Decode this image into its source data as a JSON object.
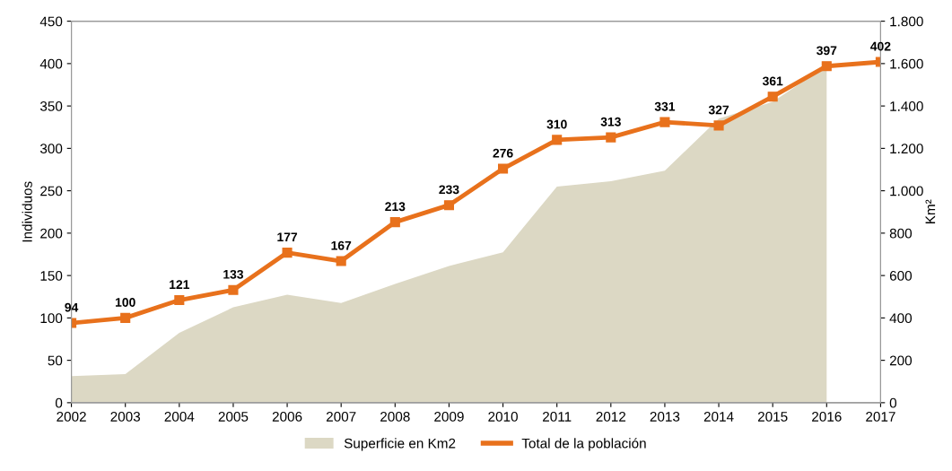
{
  "chart_data": {
    "type": "line",
    "ylabel": "Individuos",
    "y2label": "Km²",
    "x": [
      2002,
      2003,
      2004,
      2005,
      2006,
      2007,
      2008,
      2009,
      2010,
      2011,
      2012,
      2013,
      2014,
      2015,
      2016,
      2017
    ],
    "series": [
      {
        "name": "Superficie en Km2",
        "type": "area",
        "axis": "y2",
        "color": "#dcd8c4",
        "values": [
          125,
          135,
          330,
          450,
          510,
          470,
          560,
          645,
          710,
          1020,
          1045,
          1095,
          1340,
          1420,
          1590,
          null
        ]
      },
      {
        "name": "Total de la población",
        "color": "#e8711c",
        "marker": "square",
        "values": [
          94,
          100,
          121,
          133,
          177,
          167,
          213,
          233,
          276,
          310,
          313,
          331,
          327,
          361,
          397,
          402
        ],
        "value_labels": [
          "94",
          "100",
          "121",
          "133",
          "177",
          "167",
          "213",
          "233",
          "276",
          "310",
          "313",
          "331",
          "327",
          "361",
          "397",
          "402"
        ]
      }
    ],
    "xlim": [
      2002,
      2017
    ],
    "xticks": [
      2002,
      2003,
      2004,
      2005,
      2006,
      2007,
      2008,
      2009,
      2010,
      2011,
      2012,
      2013,
      2014,
      2015,
      2016,
      2017
    ],
    "ylim": [
      0,
      450
    ],
    "yticks": [
      0,
      50,
      100,
      150,
      200,
      250,
      300,
      350,
      400,
      450
    ],
    "y2lim": [
      0,
      1800
    ],
    "y2ticks": [
      0,
      200,
      400,
      600,
      800,
      {
        "value": 1000,
        "label": "1.000"
      },
      {
        "value": 1200,
        "label": "1.200"
      },
      {
        "value": 1400,
        "label": "1.400"
      },
      {
        "value": 1600,
        "label": "1.600"
      },
      {
        "value": 1800,
        "label": "1.800"
      }
    ],
    "legend": "bottom",
    "grid": false
  }
}
